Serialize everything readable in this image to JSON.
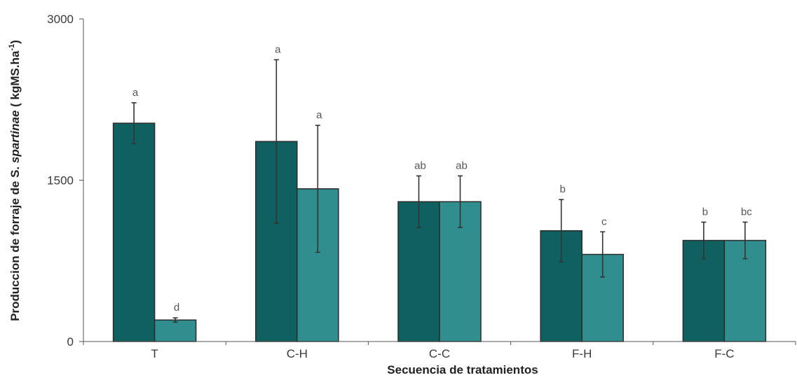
{
  "chart_data": {
    "type": "bar",
    "title": "",
    "xlabel": "Secuencia de tratamientos",
    "ylabel": {
      "prefix": "Produccion de forraje de S. ",
      "italic": "spartinae",
      "suffix": " ( kgMS.ha",
      "sup": "-1",
      "close": ")"
    },
    "ylim": [
      0,
      3000
    ],
    "yticks": [
      "0",
      "1500",
      "3000"
    ],
    "ytick_values": [
      0,
      1500,
      3000
    ],
    "categories": [
      "T",
      "C-H",
      "C-C",
      "F-H",
      "F-C"
    ],
    "legend": "none",
    "grid": false,
    "series": [
      {
        "color": "#0f6060",
        "values": [
          2030,
          1860,
          1300,
          1030,
          940
        ],
        "errors": [
          190,
          760,
          240,
          290,
          170
        ],
        "labels": [
          "a",
          "a",
          "ab",
          "b",
          "b"
        ]
      },
      {
        "color": "#318e8e",
        "values": [
          200,
          1420,
          1300,
          810,
          940
        ],
        "errors": [
          20,
          590,
          240,
          210,
          170
        ],
        "labels": [
          "d",
          "a",
          "ab",
          "c",
          "bc"
        ]
      }
    ]
  }
}
